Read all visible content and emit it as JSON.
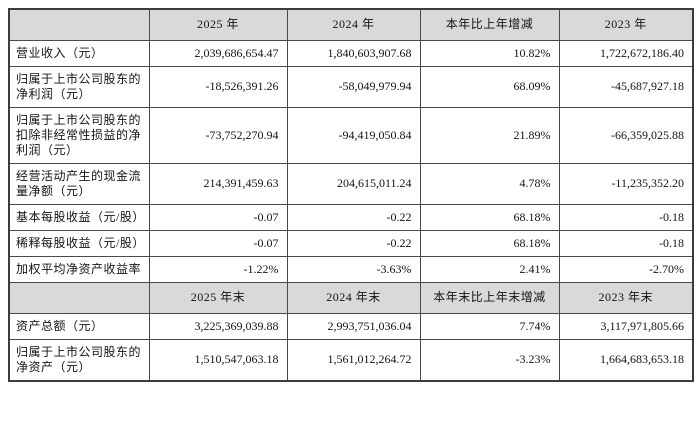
{
  "colors": {
    "page_bg": "#ffffff",
    "header_bg": "#d9d9d9",
    "border": "#4a4a4a",
    "text": "#141414"
  },
  "table": {
    "sections": [
      {
        "columns": [
          "",
          "2025 年",
          "2024 年",
          "本年比上年增减",
          "2023 年"
        ],
        "rows": [
          {
            "label": "营业收入（元）",
            "values": [
              "2,039,686,654.47",
              "1,840,603,907.68",
              "10.82%",
              "1,722,672,186.40"
            ]
          },
          {
            "label": "归属于上市公司股东的净利润（元）",
            "values": [
              "-18,526,391.26",
              "-58,049,979.94",
              "68.09%",
              "-45,687,927.18"
            ]
          },
          {
            "label": "归属于上市公司股东的扣除非经常性损益的净利润（元）",
            "values": [
              "-73,752,270.94",
              "-94,419,050.84",
              "21.89%",
              "-66,359,025.88"
            ]
          },
          {
            "label": "经营活动产生的现金流量净额（元）",
            "values": [
              "214,391,459.63",
              "204,615,011.24",
              "4.78%",
              "-11,235,352.20"
            ]
          },
          {
            "label": "基本每股收益（元/股）",
            "values": [
              "-0.07",
              "-0.22",
              "68.18%",
              "-0.18"
            ]
          },
          {
            "label": "稀释每股收益（元/股）",
            "values": [
              "-0.07",
              "-0.22",
              "68.18%",
              "-0.18"
            ]
          },
          {
            "label": "加权平均净资产收益率",
            "values": [
              "-1.22%",
              "-3.63%",
              "2.41%",
              "-2.70%"
            ]
          }
        ]
      },
      {
        "columns": [
          "",
          "2025 年末",
          "2024 年末",
          "本年末比上年末增减",
          "2023 年末"
        ],
        "rows": [
          {
            "label": "资产总额（元）",
            "values": [
              "3,225,369,039.88",
              "2,993,751,036.04",
              "7.74%",
              "3,117,971,805.66"
            ]
          },
          {
            "label": "归属于上市公司股东的净资产（元）",
            "values": [
              "1,510,547,063.18",
              "1,561,012,264.72",
              "-3.23%",
              "1,664,683,653.18"
            ]
          }
        ]
      }
    ]
  }
}
